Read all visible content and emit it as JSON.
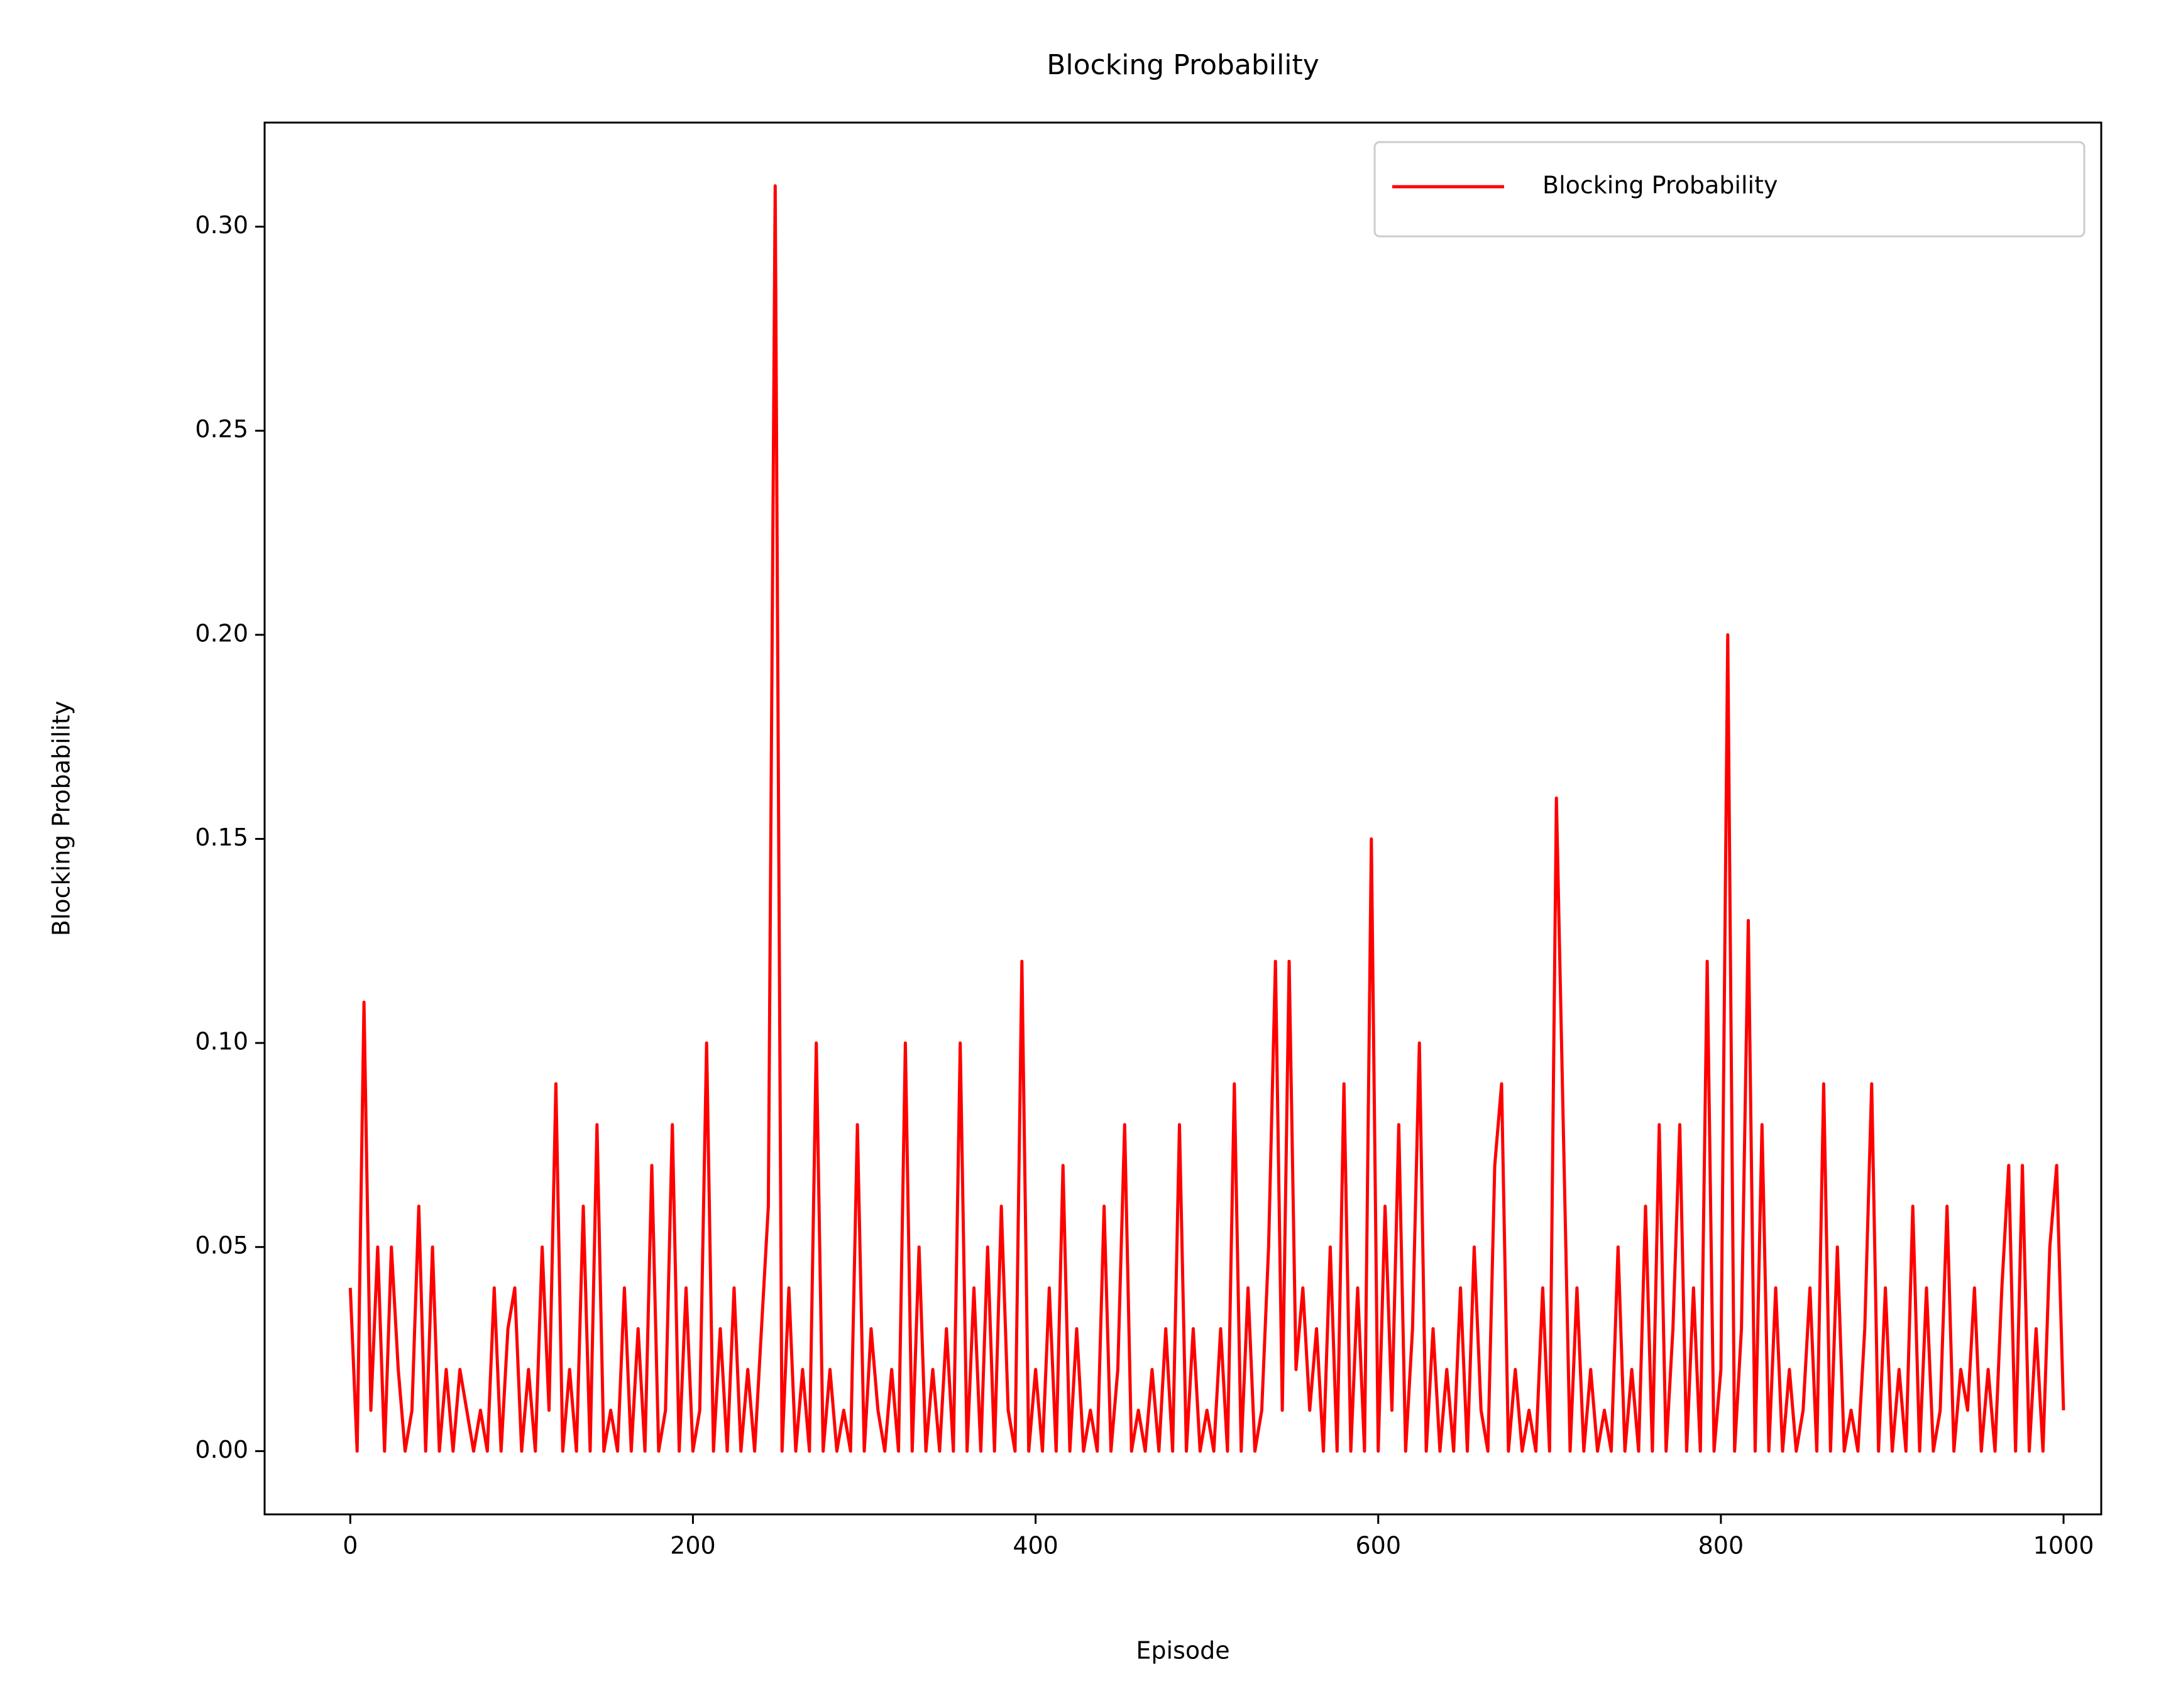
{
  "chart_data": {
    "type": "line",
    "title": "Blocking Probability",
    "x_label": "Episode",
    "y_label": "Blocking Probability",
    "x": [
      0,
      4,
      8,
      12,
      16,
      20,
      24,
      28,
      32,
      36,
      40,
      44,
      48,
      52,
      56,
      60,
      64,
      68,
      72,
      76,
      80,
      84,
      88,
      92,
      96,
      100,
      104,
      108,
      112,
      116,
      120,
      124,
      128,
      132,
      136,
      140,
      144,
      148,
      152,
      156,
      160,
      164,
      168,
      172,
      176,
      180,
      184,
      188,
      192,
      196,
      200,
      204,
      208,
      212,
      216,
      220,
      224,
      228,
      232,
      236,
      240,
      244,
      248,
      252,
      256,
      260,
      264,
      268,
      272,
      276,
      280,
      284,
      288,
      292,
      296,
      300,
      304,
      308,
      312,
      316,
      320,
      324,
      328,
      332,
      336,
      340,
      344,
      348,
      352,
      356,
      360,
      364,
      368,
      372,
      376,
      380,
      384,
      388,
      392,
      396,
      400,
      404,
      408,
      412,
      416,
      420,
      424,
      428,
      432,
      436,
      440,
      444,
      448,
      452,
      456,
      460,
      464,
      468,
      472,
      476,
      480,
      484,
      488,
      492,
      496,
      500,
      504,
      508,
      512,
      516,
      520,
      524,
      528,
      532,
      536,
      540,
      544,
      548,
      552,
      556,
      560,
      564,
      568,
      572,
      576,
      580,
      584,
      588,
      592,
      596,
      600,
      604,
      608,
      612,
      616,
      620,
      624,
      628,
      632,
      636,
      640,
      644,
      648,
      652,
      656,
      660,
      664,
      668,
      672,
      676,
      680,
      684,
      688,
      692,
      696,
      700,
      704,
      708,
      712,
      716,
      720,
      724,
      728,
      732,
      736,
      740,
      744,
      748,
      752,
      756,
      760,
      764,
      768,
      772,
      776,
      780,
      784,
      788,
      792,
      796,
      800,
      804,
      808,
      812,
      816,
      820,
      824,
      828,
      832,
      836,
      840,
      844,
      848,
      852,
      856,
      860,
      864,
      868,
      872,
      876,
      880,
      884,
      888,
      892,
      896,
      900,
      904,
      908,
      912,
      916,
      920,
      924,
      928,
      932,
      936,
      940,
      944,
      948,
      952,
      956,
      960,
      964,
      968,
      972,
      976,
      980,
      984,
      988,
      992,
      996,
      1000
    ],
    "series": [
      {
        "name": "Blocking Probability",
        "color": "#ff0000",
        "values": [
          0.04,
          0.0,
          0.11,
          0.01,
          0.05,
          0.0,
          0.05,
          0.02,
          0.0,
          0.01,
          0.06,
          0.0,
          0.05,
          0.0,
          0.02,
          0.0,
          0.02,
          0.01,
          0.0,
          0.01,
          0.0,
          0.04,
          0.0,
          0.03,
          0.04,
          0.0,
          0.02,
          0.0,
          0.05,
          0.01,
          0.09,
          0.0,
          0.02,
          0.0,
          0.06,
          0.0,
          0.08,
          0.0,
          0.01,
          0.0,
          0.04,
          0.0,
          0.03,
          0.0,
          0.07,
          0.0,
          0.01,
          0.08,
          0.0,
          0.04,
          0.0,
          0.01,
          0.1,
          0.0,
          0.03,
          0.0,
          0.04,
          0.0,
          0.02,
          0.0,
          0.03,
          0.06,
          0.31,
          0.0,
          0.04,
          0.0,
          0.02,
          0.0,
          0.1,
          0.0,
          0.02,
          0.0,
          0.01,
          0.0,
          0.08,
          0.0,
          0.03,
          0.01,
          0.0,
          0.02,
          0.0,
          0.1,
          0.0,
          0.05,
          0.0,
          0.02,
          0.0,
          0.03,
          0.0,
          0.1,
          0.0,
          0.04,
          0.0,
          0.05,
          0.0,
          0.06,
          0.01,
          0.0,
          0.12,
          0.0,
          0.02,
          0.0,
          0.04,
          0.0,
          0.07,
          0.0,
          0.03,
          0.0,
          0.01,
          0.0,
          0.06,
          0.0,
          0.02,
          0.08,
          0.0,
          0.01,
          0.0,
          0.02,
          0.0,
          0.03,
          0.0,
          0.08,
          0.0,
          0.03,
          0.0,
          0.01,
          0.0,
          0.03,
          0.0,
          0.09,
          0.0,
          0.04,
          0.0,
          0.01,
          0.05,
          0.12,
          0.01,
          0.12,
          0.02,
          0.04,
          0.01,
          0.03,
          0.0,
          0.05,
          0.0,
          0.09,
          0.0,
          0.04,
          0.0,
          0.15,
          0.0,
          0.06,
          0.01,
          0.08,
          0.0,
          0.03,
          0.1,
          0.0,
          0.03,
          0.0,
          0.02,
          0.0,
          0.04,
          0.0,
          0.05,
          0.01,
          0.0,
          0.07,
          0.09,
          0.0,
          0.02,
          0.0,
          0.01,
          0.0,
          0.04,
          0.0,
          0.16,
          0.08,
          0.0,
          0.04,
          0.0,
          0.02,
          0.0,
          0.01,
          0.0,
          0.05,
          0.0,
          0.02,
          0.0,
          0.06,
          0.0,
          0.08,
          0.0,
          0.03,
          0.08,
          0.0,
          0.04,
          0.0,
          0.12,
          0.0,
          0.02,
          0.2,
          0.0,
          0.03,
          0.13,
          0.0,
          0.08,
          0.0,
          0.04,
          0.0,
          0.02,
          0.0,
          0.01,
          0.04,
          0.0,
          0.09,
          0.0,
          0.05,
          0.0,
          0.01,
          0.0,
          0.03,
          0.09,
          0.0,
          0.04,
          0.0,
          0.02,
          0.0,
          0.06,
          0.0,
          0.04,
          0.0,
          0.01,
          0.06,
          0.0,
          0.02,
          0.01,
          0.04,
          0.0,
          0.02,
          0.0,
          0.04,
          0.07,
          0.0,
          0.07,
          0.0,
          0.03,
          0.0,
          0.05,
          0.07,
          0.01
        ]
      }
    ],
    "xlim": [
      -50,
      1022
    ],
    "xticks": [
      0,
      200,
      400,
      600,
      800,
      1000
    ],
    "ylim": [
      -0.0155,
      0.3255
    ],
    "yticks": [
      {
        "value": 0,
        "label": "0.00"
      },
      {
        "value": 0.05,
        "label": "0.05"
      },
      {
        "value": 0.1,
        "label": "0.10"
      },
      {
        "value": 0.15,
        "label": "0.15"
      },
      {
        "value": 0.2,
        "label": "0.20"
      },
      {
        "value": 0.25,
        "label": "0.25"
      },
      {
        "value": 0.3,
        "label": "0.30"
      }
    ],
    "grid": false,
    "legend": "upper right"
  }
}
